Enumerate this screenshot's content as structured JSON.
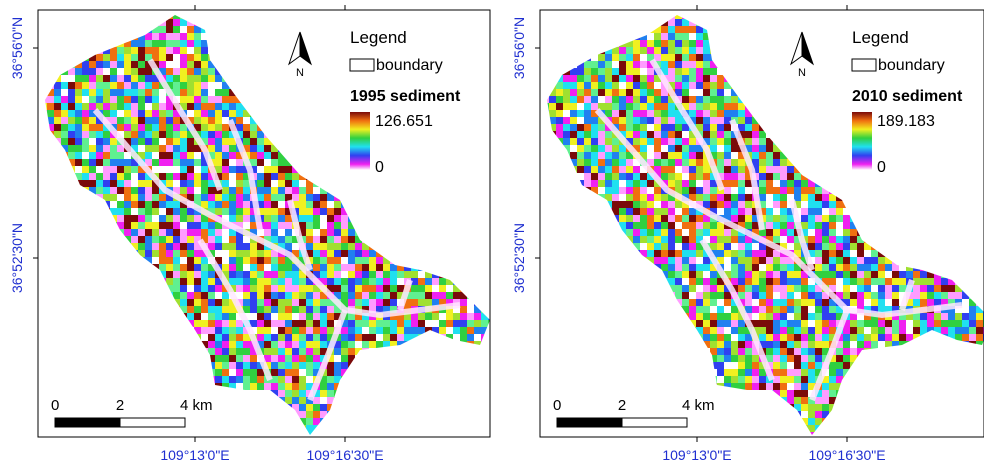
{
  "panels": [
    {
      "lat_labels": [
        "36°56'0\"N",
        "36°52'30\"N"
      ],
      "lon_labels": [
        "109°13'0\"E",
        "109°16'30\"E"
      ],
      "north": "N",
      "legend": {
        "title": "Legend",
        "boundary": "boundary",
        "layer": "1995 sediment",
        "high": "126.651",
        "low": "0"
      },
      "scale": [
        "0",
        "2",
        "4 km"
      ]
    },
    {
      "lat_labels": [
        "36°56'0\"N",
        "36°52'30\"N"
      ],
      "lon_labels": [
        "109°13'0\"E",
        "109°16'30\"E"
      ],
      "north": "N",
      "legend": {
        "title": "Legend",
        "boundary": "boundary",
        "layer": "2010 sediment",
        "high": "189.183",
        "low": "0"
      },
      "scale": [
        "0",
        "2",
        "4 km"
      ]
    }
  ]
}
